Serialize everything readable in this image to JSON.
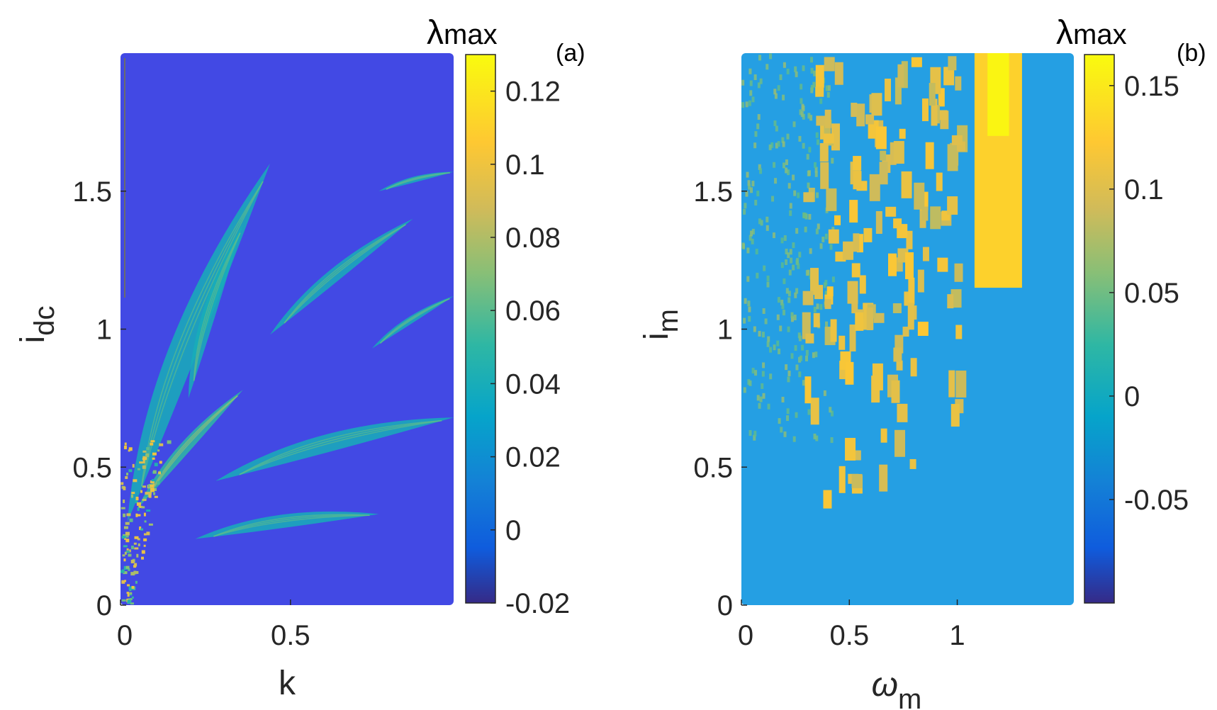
{
  "colormap": "parula",
  "panels": [
    {
      "panel_label": "(a)",
      "xlabel": "k",
      "ylabel_main": "i",
      "ylabel_sub": "dc",
      "colorbar_label_symbol": "λ",
      "colorbar_label_sub": "max",
      "background_color": "#4249e4",
      "x_ticks": [
        "0",
        "0.5"
      ],
      "y_ticks": [
        "0",
        "0.5",
        "1",
        "1.5"
      ],
      "cb_ticks": [
        "-0.02",
        "0",
        "0.02",
        "0.04",
        "0.06",
        "0.08",
        "0.1",
        "0.12"
      ]
    },
    {
      "panel_label": "(b)",
      "xlabel_main": "ω",
      "xlabel_sub": "m",
      "ylabel_main": "i",
      "ylabel_sub": "m",
      "colorbar_label_symbol": "λ",
      "colorbar_label_sub": "max",
      "background_color": "#259fe3",
      "x_ticks": [
        "0",
        "0.5",
        "1"
      ],
      "y_ticks": [
        "0",
        "0.5",
        "1",
        "1.5"
      ],
      "cb_ticks": [
        "-0.05",
        "0",
        "0.05",
        "0.1",
        "0.15"
      ]
    }
  ],
  "chart_data": [
    {
      "type": "heatmap",
      "title": "",
      "xlabel": "k",
      "ylabel": "i_dc",
      "colorbar_label": "λ_max",
      "xlim": [
        0,
        0.98
      ],
      "ylim": [
        0,
        2.0
      ],
      "clim": [
        -0.02,
        0.13
      ],
      "x_ticks": [
        0,
        0.5
      ],
      "y_ticks": [
        0,
        0.5,
        1,
        1.5
      ],
      "colorbar_ticks": [
        -0.02,
        0,
        0.02,
        0.04,
        0.06,
        0.08,
        0.1,
        0.12
      ],
      "background_value": 0,
      "features": [
        {
          "kind": "tongue",
          "k_start": 0.02,
          "i_start": 0.3,
          "k_end": 0.44,
          "i_end": 1.6,
          "value": 0.04
        },
        {
          "kind": "tongue",
          "k_start": 0.2,
          "i_start": 0.75,
          "k_end": 0.36,
          "i_end": 1.38,
          "value": 0.04
        },
        {
          "kind": "tongue",
          "k_start": 0.44,
          "i_start": 0.98,
          "k_end": 0.86,
          "i_end": 1.4,
          "value": 0.04
        },
        {
          "kind": "tongue",
          "k_start": 0.74,
          "i_start": 0.93,
          "k_end": 0.98,
          "i_end": 1.12,
          "value": 0.04
        },
        {
          "kind": "tongue",
          "k_start": 0.76,
          "i_start": 1.5,
          "k_end": 0.98,
          "i_end": 1.57,
          "value": 0.04
        },
        {
          "kind": "tongue",
          "k_start": 0.05,
          "i_start": 0.35,
          "k_end": 0.36,
          "i_end": 0.78,
          "value": 0.05
        },
        {
          "kind": "tongue",
          "k_start": 0.28,
          "i_start": 0.45,
          "k_end": 0.98,
          "i_end": 0.68,
          "value": 0.04
        },
        {
          "kind": "tongue",
          "k_start": 0.22,
          "i_start": 0.24,
          "k_end": 0.76,
          "i_end": 0.33,
          "value": 0.04
        },
        {
          "kind": "chaotic-core",
          "k_start": 0.0,
          "i_start": 0.0,
          "k_end": 0.12,
          "i_end": 0.6,
          "value": 0.1
        }
      ]
    },
    {
      "type": "heatmap",
      "title": "",
      "xlabel": "ω_m",
      "ylabel": "i_m",
      "colorbar_label": "λ_max",
      "xlim": [
        0,
        1.54
      ],
      "ylim": [
        0,
        2.0
      ],
      "clim": [
        -0.1,
        0.165
      ],
      "x_ticks": [
        0,
        0.5,
        1
      ],
      "y_ticks": [
        0,
        0.5,
        1,
        1.5
      ],
      "colorbar_ticks": [
        -0.05,
        0,
        0.05,
        0.1,
        0.15
      ],
      "background_value": 0,
      "features": [
        {
          "kind": "fringe",
          "w_start": 0.0,
          "w_end": 0.42,
          "i_start": 0.6,
          "i_end": 2.0,
          "value": 0.04
        },
        {
          "kind": "blocks",
          "w_start": 0.28,
          "w_end": 1.0,
          "i_start": 0.35,
          "i_end": 2.0,
          "value": 0.11
        },
        {
          "kind": "column",
          "w_start": 1.08,
          "w_end": 1.3,
          "i_start": 1.15,
          "i_end": 2.0,
          "value": 0.13
        },
        {
          "kind": "column",
          "w_start": 1.14,
          "w_end": 1.24,
          "i_start": 1.7,
          "i_end": 2.0,
          "value": 0.16
        }
      ]
    }
  ]
}
